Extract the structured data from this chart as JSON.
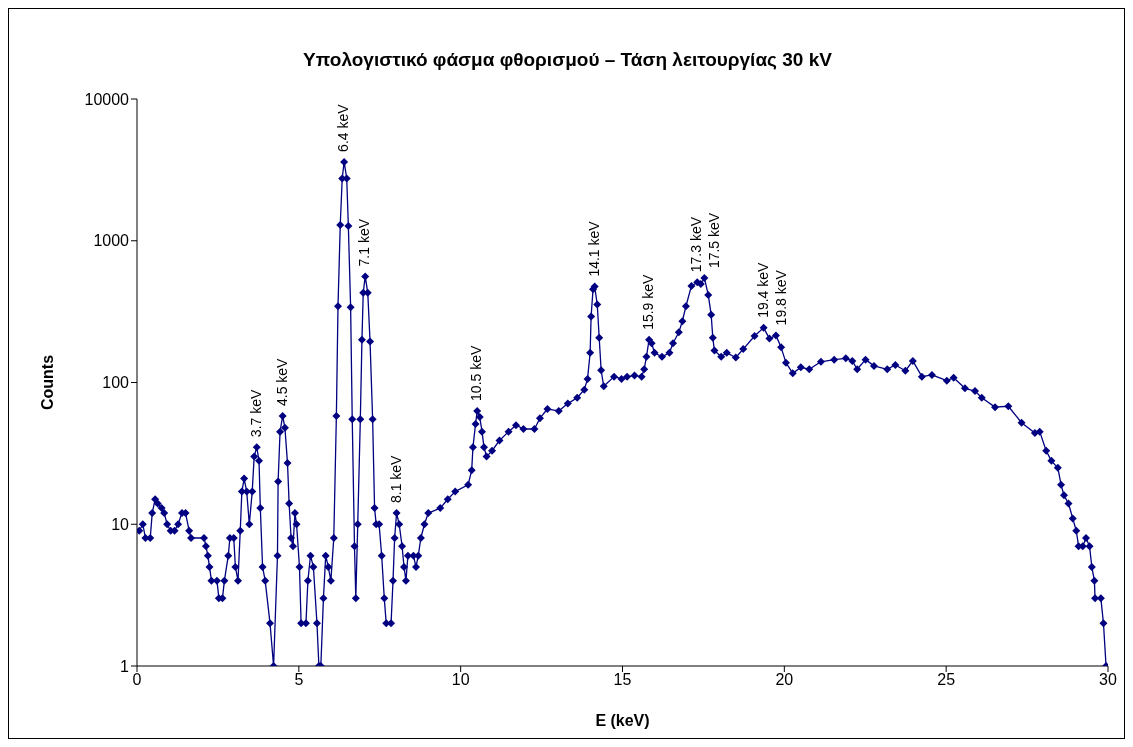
{
  "chart_data": {
    "type": "line",
    "title": "Υπολογιστικό φάσμα φθορισμού – Τάση λειτουργίας 30 kV",
    "xlabel": "E (keV)",
    "ylabel": "Counts",
    "log": "y",
    "xlim": [
      0,
      30
    ],
    "xticks": [
      0,
      5,
      10,
      15,
      20,
      25,
      30
    ],
    "ylim": [
      1,
      10000
    ],
    "yticks": [
      1,
      10,
      100,
      1000,
      10000
    ],
    "grid": false,
    "marker": "diamond",
    "line_style": "solid",
    "series": [
      {
        "color": "#000080",
        "x": [
          0.07,
          0.18,
          0.26,
          0.41,
          0.47,
          0.56,
          0.64,
          0.76,
          0.84,
          0.93,
          1.04,
          1.16,
          1.27,
          1.39,
          1.5,
          1.61,
          1.67,
          2.07,
          2.13,
          2.19,
          2.24,
          2.3,
          2.47,
          2.53,
          2.64,
          2.7,
          2.82,
          2.87,
          2.99,
          3.04,
          3.12,
          3.19,
          3.24,
          3.31,
          3.39,
          3.47,
          3.56,
          3.62,
          3.7,
          3.77,
          3.81,
          3.88,
          3.96,
          4.11,
          4.22,
          4.34,
          4.36,
          4.42,
          4.5,
          4.57,
          4.65,
          4.7,
          4.76,
          4.82,
          4.88,
          4.93,
          5.02,
          5.07,
          5.22,
          5.28,
          5.36,
          5.45,
          5.56,
          5.62,
          5.68,
          5.76,
          5.83,
          5.91,
          5.99,
          6.08,
          6.16,
          6.21,
          6.28,
          6.34,
          6.4,
          6.48,
          6.53,
          6.6,
          6.65,
          6.72,
          6.76,
          6.82,
          6.9,
          6.95,
          6.99,
          7.05,
          7.13,
          7.2,
          7.28,
          7.34,
          7.39,
          7.48,
          7.56,
          7.64,
          7.7,
          7.85,
          7.91,
          7.96,
          8.02,
          8.1,
          8.19,
          8.25,
          8.31,
          8.37,
          8.54,
          8.62,
          8.69,
          8.77,
          8.88,
          9.0,
          9.37,
          9.6,
          9.83,
          10.23,
          10.34,
          10.38,
          10.46,
          10.51,
          10.59,
          10.66,
          10.72,
          10.8,
          10.97,
          11.2,
          11.48,
          11.71,
          11.94,
          12.28,
          12.45,
          12.68,
          13.03,
          13.31,
          13.6,
          13.82,
          13.92,
          14.0,
          14.03,
          14.09,
          14.14,
          14.22,
          14.28,
          14.34,
          14.42,
          14.74,
          14.97,
          15.14,
          15.37,
          15.59,
          15.67,
          15.74,
          15.82,
          15.9,
          15.99,
          16.22,
          16.45,
          16.56,
          16.74,
          16.85,
          16.96,
          17.13,
          17.31,
          17.42,
          17.53,
          17.65,
          17.74,
          17.79,
          17.84,
          18.05,
          18.22,
          18.5,
          18.73,
          19.08,
          19.36,
          19.54,
          19.74,
          19.9,
          20.05,
          20.26,
          20.51,
          20.77,
          21.13,
          21.54,
          21.9,
          22.1,
          22.25,
          22.51,
          22.77,
          23.18,
          23.43,
          23.74,
          23.97,
          24.25,
          24.56,
          25.02,
          25.23,
          25.58,
          25.89,
          26.1,
          26.51,
          26.92,
          27.33,
          27.74,
          27.89,
          28.09,
          28.25,
          28.45,
          28.55,
          28.64,
          28.78,
          28.91,
          29.02,
          29.09,
          29.22,
          29.32,
          29.43,
          29.5,
          29.58,
          29.6,
          29.78,
          29.86,
          29.94
        ],
        "values": [
          9,
          10,
          8,
          8,
          12,
          15,
          14,
          13,
          12,
          10,
          9,
          9,
          10,
          12,
          12,
          9,
          8,
          8,
          7,
          6,
          5,
          4,
          4,
          3,
          3,
          4,
          6,
          8,
          8,
          5,
          4,
          9,
          17,
          21,
          17,
          10,
          17,
          30,
          35,
          28,
          13,
          5,
          4,
          2,
          1,
          6,
          20,
          45,
          58,
          48,
          27,
          14,
          8,
          7,
          12,
          10,
          5,
          2,
          2,
          4,
          6,
          5,
          2,
          1,
          1,
          3,
          6,
          5,
          4,
          8,
          58,
          345,
          1290,
          2750,
          3600,
          2750,
          1270,
          340,
          55,
          7,
          3,
          10,
          55,
          200,
          430,
          560,
          430,
          195,
          55,
          13,
          10,
          10,
          6,
          3,
          2,
          2,
          4,
          8,
          12,
          10,
          7,
          5,
          4,
          6,
          6,
          5,
          6,
          8,
          10,
          12,
          13,
          15,
          17,
          19,
          24,
          35,
          51,
          63,
          57,
          45,
          35,
          30,
          33,
          39,
          45,
          50,
          47,
          47,
          56,
          65,
          63,
          71,
          78,
          89,
          106,
          162,
          292,
          455,
          475,
          355,
          207,
          122,
          94,
          110,
          106,
          110,
          112,
          110,
          124,
          152,
          200,
          189,
          162,
          152,
          162,
          189,
          226,
          271,
          345,
          480,
          510,
          495,
          545,
          415,
          300,
          207,
          168,
          152,
          162,
          150,
          172,
          213,
          243,
          204,
          215,
          177,
          138,
          116,
          128,
          124,
          140,
          145,
          148,
          142,
          124,
          145,
          131,
          124,
          133,
          121,
          142,
          110,
          113,
          103,
          108,
          91,
          87,
          78,
          67,
          68,
          52,
          44,
          45,
          33,
          28,
          25,
          19,
          16,
          14,
          11,
          9,
          7,
          7,
          8,
          7,
          5,
          4,
          3,
          3,
          2,
          1
        ]
      }
    ],
    "annotations": [
      {
        "text": "3.7 keV",
        "x": 3.7,
        "y": 35
      },
      {
        "text": "4.5 keV",
        "x": 4.5,
        "y": 58
      },
      {
        "text": "6.4 keV",
        "x": 6.4,
        "y": 3600
      },
      {
        "text": "7.1 keV",
        "x": 7.05,
        "y": 560
      },
      {
        "text": "8.1 keV",
        "x": 8.02,
        "y": 12
      },
      {
        "text": "10.5 keV",
        "x": 10.51,
        "y": 63
      },
      {
        "text": "14.1 keV",
        "x": 14.14,
        "y": 475
      },
      {
        "text": "15.9 keV",
        "x": 15.82,
        "y": 200
      },
      {
        "text": "17.3 keV",
        "x": 17.31,
        "y": 510
      },
      {
        "text": "17.5 keV",
        "x": 17.53,
        "y": 545
      },
      {
        "text": "19.4 keV",
        "x": 19.36,
        "y": 243
      },
      {
        "text": "19.8 keV",
        "x": 19.74,
        "y": 215
      }
    ]
  }
}
